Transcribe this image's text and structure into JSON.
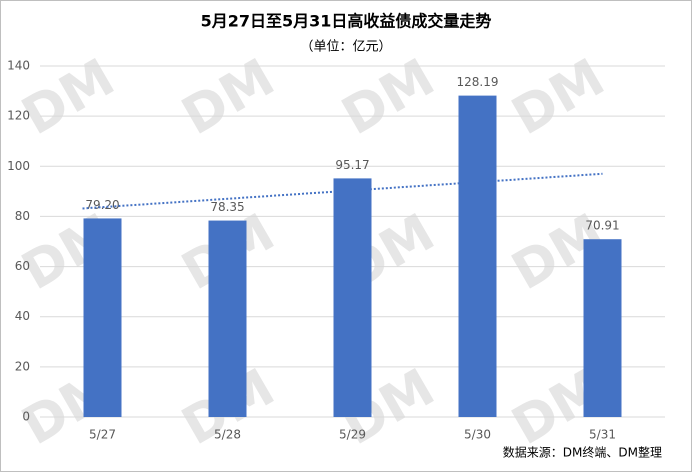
{
  "chart_data": {
    "type": "bar",
    "title": "5月27日至5月31日高收益债成交量走势",
    "subtitle": "（单位：亿元）",
    "categories": [
      "5/27",
      "5/28",
      "5/29",
      "5/30",
      "5/31"
    ],
    "values": [
      79.2,
      78.35,
      95.17,
      128.19,
      70.91
    ],
    "value_labels": [
      "79.20",
      "78.35",
      "95.17",
      "128.19",
      "70.91"
    ],
    "color": "#4472c4",
    "ylim": [
      0,
      140
    ],
    "yticks": [
      0,
      20,
      40,
      60,
      80,
      100,
      120,
      140
    ],
    "grid": true,
    "trendline": true,
    "source": "数据来源：DM终端、DM整理",
    "watermark": "DM"
  }
}
